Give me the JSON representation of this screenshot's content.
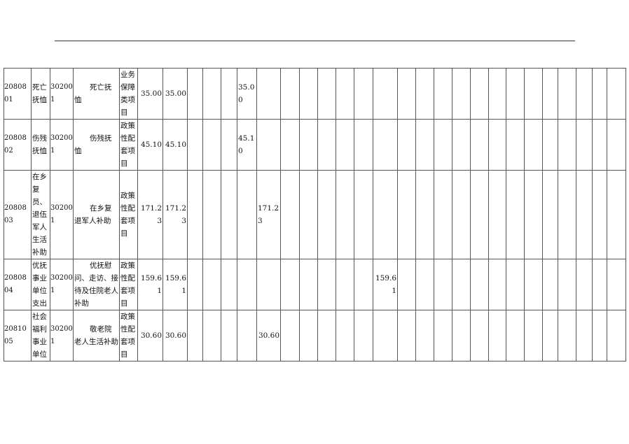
{
  "rows": [
    {
      "cells": [
        "2080801",
        "死亡抚恤",
        "302001",
        "死亡抚恤",
        "业务保障类项目",
        "35.00",
        "35.00",
        "",
        "",
        "",
        "35.00",
        "",
        "",
        "",
        "",
        "",
        "",
        "",
        "",
        "",
        "",
        "",
        "",
        "",
        "",
        "",
        "",
        "",
        "",
        "",
        ""
      ]
    },
    {
      "cells": [
        "2080802",
        "伤残抚恤",
        "302001",
        "伤残抚恤",
        "政策性配套项目",
        "45.10",
        "45.10",
        "",
        "",
        "",
        "45.10",
        "",
        "",
        "",
        "",
        "",
        "",
        "",
        "",
        "",
        "",
        "",
        "",
        "",
        "",
        "",
        "",
        "",
        "",
        "",
        ""
      ]
    },
    {
      "cells": [
        "2080803",
        "在乡复员、退伍军人生活补助",
        "302001",
        "在乡复退军人补助",
        "政策性配套项目",
        "171.23",
        "171.23",
        "",
        "",
        "",
        "",
        "171.23",
        "",
        "",
        "",
        "",
        "",
        "",
        "",
        "",
        "",
        "",
        "",
        "",
        "",
        "",
        "",
        "",
        "",
        "",
        ""
      ]
    },
    {
      "cells": [
        "2080804",
        "优抚事业单位支出",
        "302001",
        "优抚慰问、走访、接待及住院老人补助",
        "政策性配套项目",
        "159.61",
        "159.61",
        "",
        "",
        "",
        "",
        "",
        "",
        "",
        "",
        "",
        "",
        "159.61",
        "",
        "",
        "",
        "",
        "",
        "",
        "",
        "",
        "",
        "",
        "",
        "",
        ""
      ]
    },
    {
      "cells": [
        "2081005",
        "社会福利事业单位",
        "302001",
        "敬老院老人生活补助",
        "政策性配套项目",
        "30.60",
        "30.60",
        "",
        "",
        "",
        "",
        "30.60",
        "",
        "",
        "",
        "",
        "",
        "",
        "",
        "",
        "",
        "",
        "",
        "",
        "",
        "",
        "",
        "",
        "",
        "",
        ""
      ]
    }
  ]
}
